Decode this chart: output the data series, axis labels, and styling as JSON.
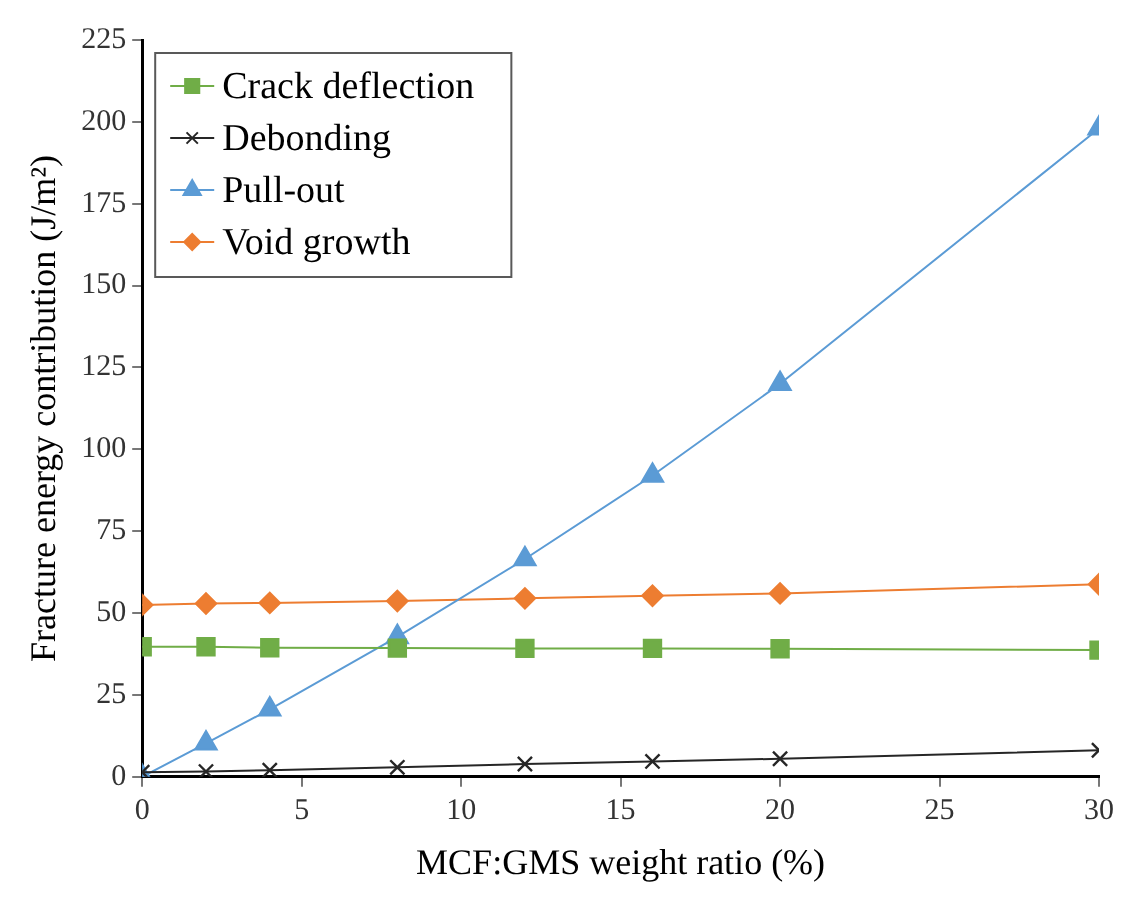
{
  "chart_data": {
    "type": "line",
    "xlabel": "MCF:GMS weight ratio (%)",
    "ylabel": "Fracture energy contribution (J/m²)",
    "x": [
      0,
      2,
      4,
      8,
      12,
      16,
      20,
      30
    ],
    "series": [
      {
        "name": "Crack deflection",
        "color": "#70ad47",
        "marker": "square",
        "values": [
          39.7,
          39.7,
          39.4,
          39.3,
          39.2,
          39.2,
          39.1,
          38.7
        ]
      },
      {
        "name": "Debonding",
        "color": "#262626",
        "marker": "cross",
        "values": [
          1.4,
          1.6,
          2,
          2.9,
          3.9,
          4.7,
          5.5,
          8.1
        ]
      },
      {
        "name": "Pull-out",
        "color": "#5b9bd5",
        "marker": "triangle",
        "values": [
          0,
          10.2,
          20.6,
          42.7,
          66.5,
          92,
          120,
          198
        ]
      },
      {
        "name": "Void growth",
        "color": "#ed7d31",
        "marker": "diamond",
        "values": [
          52.5,
          52.9,
          53.1,
          53.7,
          54.5,
          55.3,
          56,
          58.8
        ]
      }
    ],
    "xlim": [
      0,
      30
    ],
    "xticks": [
      0,
      5,
      10,
      15,
      20,
      25,
      30
    ],
    "ylim": [
      0,
      225
    ],
    "yticks": [
      0,
      25,
      50,
      75,
      100,
      125,
      150,
      175,
      200,
      225
    ],
    "grid": false,
    "legend": "top left",
    "line_style": "solid"
  }
}
